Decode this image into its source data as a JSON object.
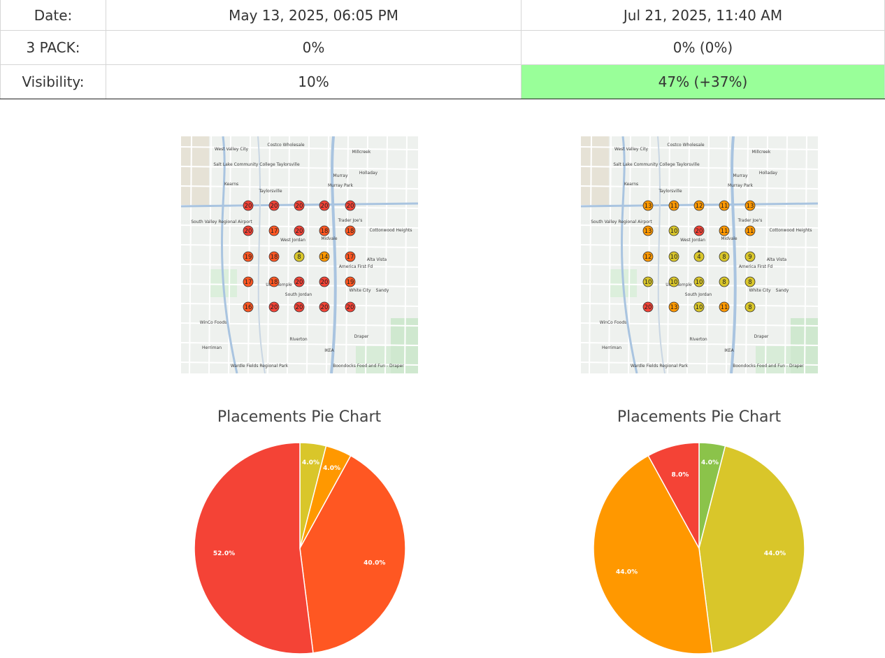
{
  "table": {
    "rows": [
      {
        "label": "Date:",
        "a": "May 13, 2025, 06:05 PM",
        "b": "Jul 21, 2025, 11:40 AM"
      },
      {
        "label": "3 PACK:",
        "a": "0%",
        "b": "0% (0%)"
      },
      {
        "label": "Visibility:",
        "a": "10%",
        "b": "47% (+37%)"
      }
    ]
  },
  "colors": {
    "rank_red": "#f44336",
    "rank_orange_red": "#ff5722",
    "rank_orange": "#ff9800",
    "rank_yellow": "#d9c62a",
    "rank_green": "#8bc34a",
    "visibility_good": "#99ff99"
  },
  "maps": [
    {
      "id": "before",
      "center_value": "8",
      "labels": [
        "West Valley City",
        "Costco Wholesale",
        "Millcreek",
        "Salt Lake Community College Taylorsville",
        "Holladay",
        "Murray",
        "Kearns",
        "Taylorsville",
        "Murray Park",
        "Trader Joe's",
        "South Valley Regional Airport",
        "West Jordan",
        "Midvale",
        "Cottonwood Heights",
        "America First Fd",
        "Alta Vista",
        "Utah Temple",
        "South Jordan",
        "White City",
        "Sandy",
        "WinCo Foods",
        "Riverton",
        "Draper",
        "Herriman",
        "IKEA",
        "Boondocks Food and Fun - Draper",
        "Wardle Fields Regional Park"
      ],
      "grid": [
        [
          "20",
          "20",
          "20",
          "20",
          "20"
        ],
        [
          "20",
          "17",
          "20",
          "18",
          "18"
        ],
        [
          "19",
          "18",
          "8",
          "14",
          "17"
        ],
        [
          "17",
          "18",
          "20",
          "20",
          "19"
        ],
        [
          "16",
          "20",
          "20",
          "20",
          "20"
        ]
      ]
    },
    {
      "id": "after",
      "center_value": "4",
      "labels": [
        "West Valley City",
        "Costco Wholesale",
        "Millcreek",
        "Salt Lake Community College Taylorsville",
        "Holladay",
        "Murray",
        "Kearns",
        "Taylorsville",
        "Murray Park",
        "Trader Joe's",
        "South Valley Regional Airport",
        "West Jordan",
        "Midvale",
        "Cottonwood Heights",
        "America First Fd",
        "Alta Vista",
        "Utah Temple",
        "South Jordan",
        "White City",
        "Sandy",
        "WinCo Foods",
        "Riverton",
        "Draper",
        "Herriman",
        "IKEA",
        "Boondocks Food and Fun - Draper",
        "Wardle Fields Regional Park"
      ],
      "grid": [
        [
          "13",
          "11",
          "12",
          "11",
          "13"
        ],
        [
          "13",
          "10",
          "20",
          "11",
          "11"
        ],
        [
          "12",
          "10",
          "4",
          "8",
          "9"
        ],
        [
          "10",
          "10",
          "10",
          "8",
          "8"
        ],
        [
          "20",
          "13",
          "10",
          "11",
          "8"
        ]
      ]
    }
  ],
  "chart_data": [
    {
      "type": "pie",
      "title": "Placements Pie Chart",
      "slices": [
        {
          "value": 4.0,
          "label": "4.0%",
          "color": "#d9c62a"
        },
        {
          "value": 4.0,
          "label": "4.0%",
          "color": "#ff9800"
        },
        {
          "value": 40.0,
          "label": "40.0%",
          "color": "#ff5722"
        },
        {
          "value": 52.0,
          "label": "52.0%",
          "color": "#f44336"
        }
      ]
    },
    {
      "type": "pie",
      "title": "Placements Pie Chart",
      "slices": [
        {
          "value": 4.0,
          "label": "4.0%",
          "color": "#8bc34a"
        },
        {
          "value": 44.0,
          "label": "44.0%",
          "color": "#d9c62a"
        },
        {
          "value": 44.0,
          "label": "44.0%",
          "color": "#ff9800"
        },
        {
          "value": 8.0,
          "label": "8.0%",
          "color": "#f44336"
        }
      ]
    }
  ]
}
